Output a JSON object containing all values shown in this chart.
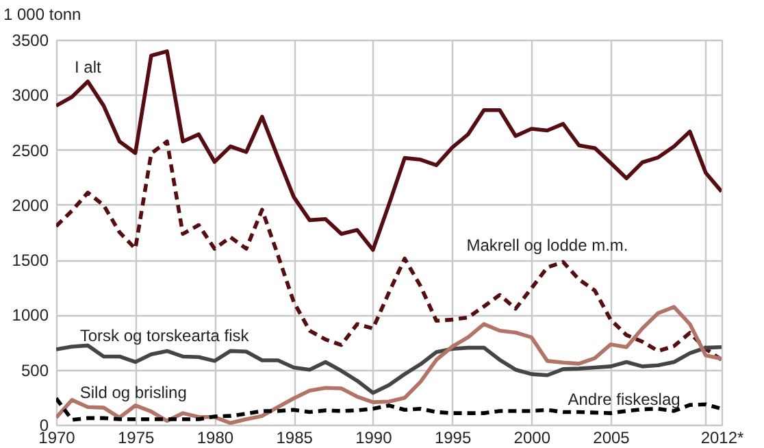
{
  "chart_data": {
    "type": "line",
    "ylabel": "1 000 tonn",
    "x": [
      1970,
      1971,
      1972,
      1973,
      1974,
      1975,
      1976,
      1977,
      1978,
      1979,
      1980,
      1981,
      1982,
      1983,
      1984,
      1985,
      1986,
      1987,
      1988,
      1989,
      1990,
      1991,
      1992,
      1993,
      1994,
      1995,
      1996,
      1997,
      1998,
      1999,
      2000,
      2001,
      2002,
      2003,
      2004,
      2005,
      2006,
      2007,
      2008,
      2009,
      2010,
      2011,
      2012
    ],
    "series": [
      {
        "name": "I alt",
        "color": "#560d12",
        "line_style": "solid",
        "values": [
          2900,
          2980,
          3120,
          2900,
          2575,
          2470,
          3355,
          3395,
          2575,
          2640,
          2390,
          2530,
          2480,
          2800,
          2430,
          2070,
          1860,
          1870,
          1735,
          1770,
          1590,
          2000,
          2425,
          2410,
          2360,
          2520,
          2640,
          2860,
          2860,
          2625,
          2690,
          2675,
          2735,
          2540,
          2515,
          2380,
          2240,
          2385,
          2430,
          2530,
          2665,
          2290,
          2120
        ]
      },
      {
        "name": "Makrell og lodde m.m.",
        "color": "#560d12",
        "line_style": "dashed",
        "values": [
          1805,
          1945,
          2110,
          1995,
          1750,
          1600,
          2465,
          2575,
          1735,
          1815,
          1600,
          1705,
          1600,
          1955,
          1540,
          1115,
          855,
          775,
          725,
          915,
          875,
          1200,
          1510,
          1260,
          945,
          955,
          975,
          1075,
          1180,
          1055,
          1240,
          1430,
          1480,
          1320,
          1220,
          955,
          815,
          755,
          670,
          715,
          835,
          690,
          590
        ]
      },
      {
        "name": "Torsk og torskearta fisk",
        "color": "#454545",
        "line_style": "solid",
        "values": [
          685,
          710,
          720,
          620,
          620,
          570,
          640,
          670,
          620,
          615,
          580,
          670,
          665,
          585,
          585,
          520,
          500,
          570,
          490,
          400,
          290,
          360,
          460,
          550,
          660,
          690,
          700,
          700,
          590,
          500,
          460,
          450,
          505,
          510,
          520,
          530,
          570,
          530,
          540,
          570,
          650,
          700,
          705
        ]
      },
      {
        "name": "Sild og brisling",
        "color": "#b27468",
        "line_style": "solid",
        "values": [
          65,
          225,
          160,
          155,
          65,
          175,
          120,
          35,
          105,
          70,
          70,
          15,
          50,
          80,
          160,
          240,
          310,
          335,
          330,
          255,
          205,
          210,
          245,
          390,
          590,
          710,
          795,
          915,
          855,
          838,
          795,
          580,
          565,
          555,
          605,
          730,
          705,
          875,
          1015,
          1070,
          915,
          630,
          600
        ]
      },
      {
        "name": "Andre fiskeslag",
        "color": "#000000",
        "line_style": "dashed",
        "values": [
          240,
          45,
          60,
          60,
          50,
          50,
          50,
          50,
          50,
          50,
          75,
          80,
          100,
          125,
          125,
          135,
          115,
          130,
          125,
          130,
          145,
          175,
          135,
          145,
          115,
          105,
          105,
          105,
          125,
          125,
          125,
          135,
          115,
          115,
          110,
          105,
          125,
          140,
          145,
          125,
          180,
          185,
          145
        ]
      }
    ],
    "xlim": [
      1970,
      2012
    ],
    "ylim": [
      0,
      3500
    ],
    "xticks": [
      1970,
      1975,
      1980,
      1985,
      1990,
      1995,
      2000,
      2005,
      {
        "value": 2011,
        "label": null
      },
      {
        "value": 2012,
        "label": "2012*"
      }
    ],
    "yticks": [
      0,
      500,
      1000,
      1500,
      2000,
      2500,
      3000,
      3500
    ],
    "grid": true,
    "legend": false,
    "marker": "none"
  }
}
